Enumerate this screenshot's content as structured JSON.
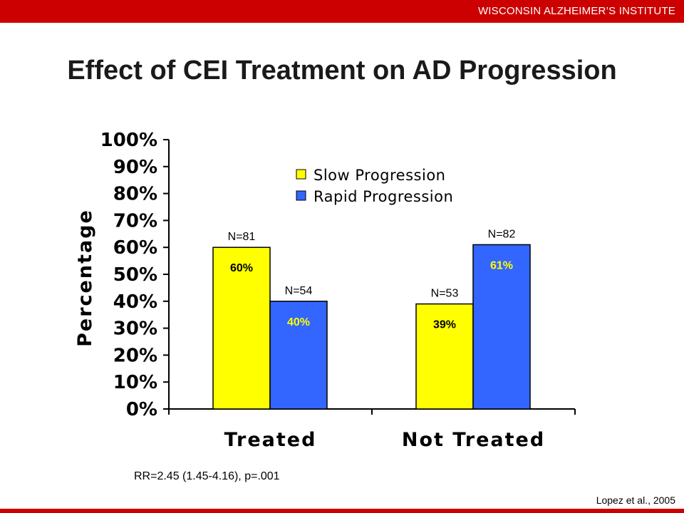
{
  "header": {
    "institute": "WISCONSIN ALZHEIMER’S INSTITUTE",
    "accent_color": "#cc0000"
  },
  "title": "Effect of CEI Treatment on AD Progression",
  "chart_data": {
    "type": "bar",
    "title": "",
    "ylabel": "Percentage",
    "xlabel": "",
    "ylim": [
      0,
      100
    ],
    "yticks": [
      "0%",
      "10%",
      "20%",
      "30%",
      "40%",
      "50%",
      "60%",
      "70%",
      "80%",
      "90%",
      "100%"
    ],
    "categories": [
      "Treated",
      "Not Treated"
    ],
    "series": [
      {
        "name": "Slow Progression",
        "color": "#ffff00",
        "values": [
          60,
          39
        ],
        "labels": [
          "60%",
          "39%"
        ],
        "n_labels": [
          "N=81",
          "N=53"
        ],
        "label_color": "#000000"
      },
      {
        "name": "Rapid Progression",
        "color": "#3366ff",
        "values": [
          40,
          61
        ],
        "labels": [
          "40%",
          "61%"
        ],
        "n_labels": [
          "N=54",
          "N=82"
        ],
        "label_color": "#ffff00"
      }
    ],
    "legend_position": "top-center",
    "grid": false
  },
  "footnote": "RR=2.45 (1.45-4.16), p=.001",
  "citation": "Lopez et al., 2005"
}
